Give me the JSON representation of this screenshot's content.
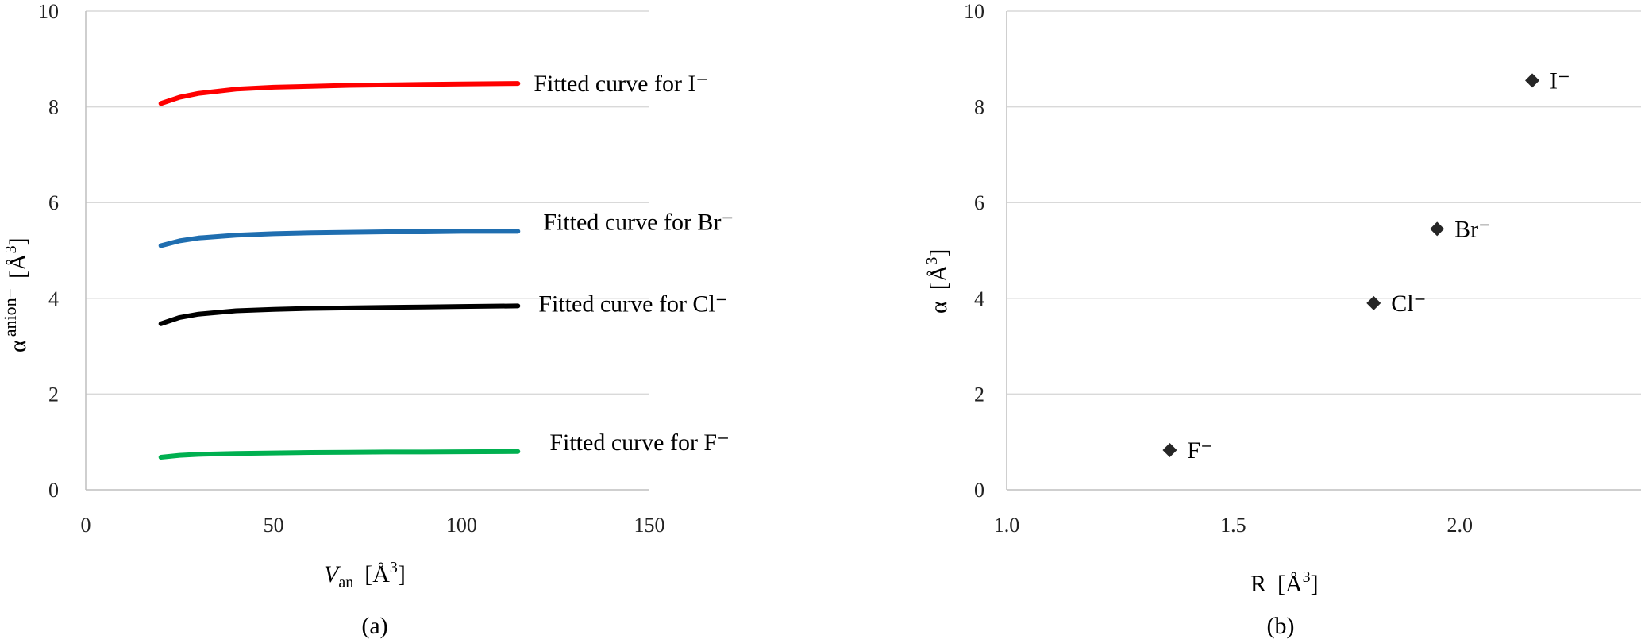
{
  "chart_data": [
    {
      "type": "line",
      "panel_label": "(a)",
      "xlabel_main": "V",
      "xlabel_sub": "an",
      "xlabel_unit": "[Å",
      "xlabel_unit_sup": "3",
      "xlabel_unit_end": "]",
      "ylabel_main": "α",
      "ylabel_sup": "anion−",
      "ylabel_unit": "[Å",
      "ylabel_unit_sup": "3",
      "ylabel_unit_end": "]",
      "xlim": [
        0,
        150
      ],
      "ylim": [
        0,
        10
      ],
      "xticks": [
        "0",
        "50",
        "100",
        "150"
      ],
      "yticks": [
        "0",
        "2",
        "4",
        "6",
        "8",
        "10"
      ],
      "grid": true,
      "series": [
        {
          "name": "Fitted curve for I⁻",
          "color": "#ff0000",
          "x": [
            20,
            25,
            30,
            40,
            50,
            60,
            70,
            80,
            90,
            100,
            115
          ],
          "y": [
            8.07,
            8.2,
            8.28,
            8.37,
            8.41,
            8.43,
            8.45,
            8.46,
            8.47,
            8.48,
            8.49
          ]
        },
        {
          "name": "Fitted curve for Br⁻",
          "color": "#1f6eb0",
          "x": [
            20,
            25,
            30,
            40,
            50,
            60,
            70,
            80,
            90,
            100,
            115
          ],
          "y": [
            5.1,
            5.2,
            5.26,
            5.32,
            5.35,
            5.37,
            5.38,
            5.39,
            5.39,
            5.4,
            5.4
          ]
        },
        {
          "name": "Fitted curve for Cl⁻",
          "color": "#000000",
          "x": [
            20,
            25,
            30,
            40,
            50,
            60,
            70,
            80,
            90,
            100,
            115
          ],
          "y": [
            3.47,
            3.6,
            3.67,
            3.74,
            3.77,
            3.79,
            3.8,
            3.81,
            3.82,
            3.83,
            3.84
          ]
        },
        {
          "name": "Fitted curve for F⁻",
          "color": "#00b050",
          "x": [
            20,
            25,
            30,
            40,
            50,
            60,
            70,
            80,
            90,
            100,
            115
          ],
          "y": [
            0.68,
            0.72,
            0.74,
            0.76,
            0.77,
            0.78,
            0.785,
            0.79,
            0.79,
            0.795,
            0.8
          ]
        }
      ]
    },
    {
      "type": "scatter",
      "panel_label": "(b)",
      "xlabel_main": "R",
      "xlabel_unit": "[Å",
      "xlabel_unit_sup": "3",
      "xlabel_unit_end": "]",
      "ylabel_main": "α",
      "ylabel_unit": "[Å",
      "ylabel_unit_sup": "3",
      "ylabel_unit_end": "]",
      "xlim": [
        1.0,
        2.4
      ],
      "ylim": [
        0,
        10
      ],
      "xticks": [
        "1.0",
        "1.5",
        "2.0"
      ],
      "yticks": [
        "0",
        "2",
        "4",
        "6",
        "8",
        "10"
      ],
      "grid": true,
      "marker": "diamond",
      "color": "#262626",
      "points": [
        {
          "label": "F⁻",
          "x": 1.36,
          "y": 0.83
        },
        {
          "label": "Cl⁻",
          "x": 1.81,
          "y": 3.9
        },
        {
          "label": "Br⁻",
          "x": 1.95,
          "y": 5.45
        },
        {
          "label": "I⁻",
          "x": 2.16,
          "y": 8.55
        }
      ]
    }
  ]
}
